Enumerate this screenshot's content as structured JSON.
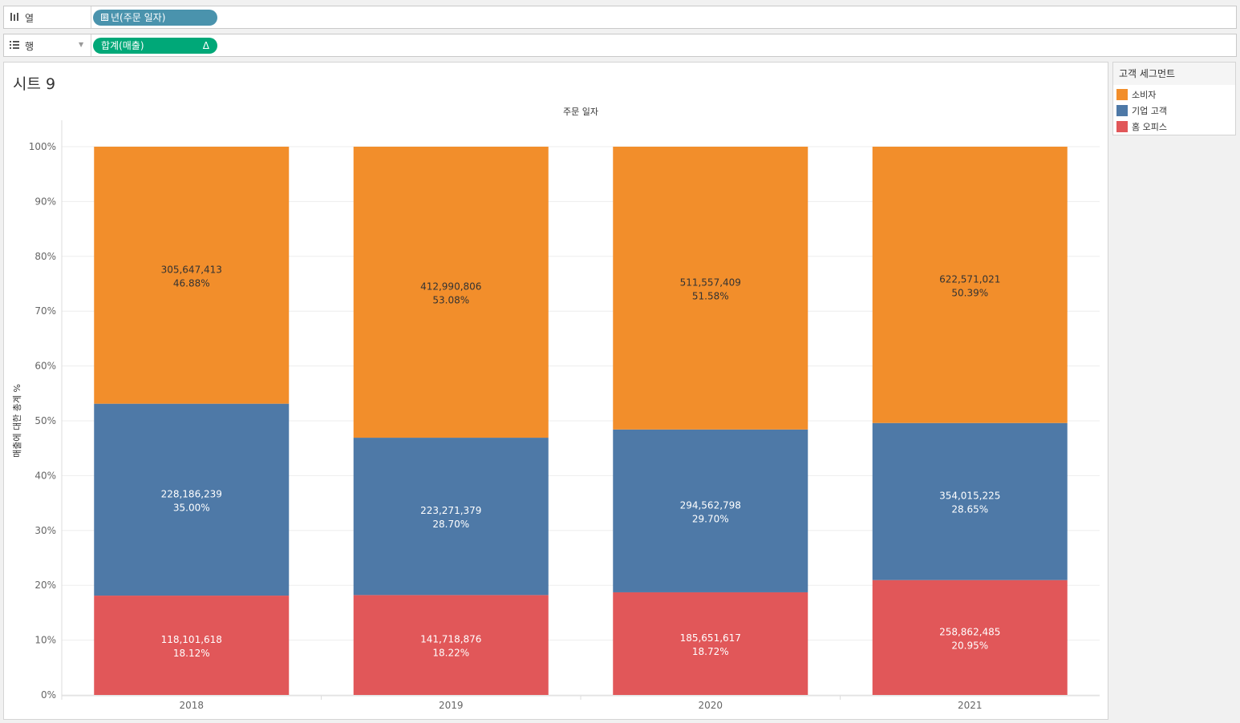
{
  "shelves": {
    "columns": {
      "label": "열",
      "pill": "년(주문 일자)",
      "pill_prefix": "⊞",
      "pill_color": "#4a93ad"
    },
    "rows": {
      "label": "행",
      "pill": "합계(매출)",
      "pill_suffix": "Δ",
      "pill_color": "#00a878"
    }
  },
  "sheet": {
    "title": "시트 9"
  },
  "legend": {
    "title": "고객 세그먼트",
    "items": [
      {
        "label": "소비자",
        "color": "#f28e2b"
      },
      {
        "label": "기업 고객",
        "color": "#4e79a7"
      },
      {
        "label": "홈 오피스",
        "color": "#e15759"
      }
    ]
  },
  "chart_data": {
    "type": "bar",
    "stacked": true,
    "normalized_percent": true,
    "title": "주문 일자",
    "xlabel": "",
    "ylabel": "매출에 대한 총계 %",
    "ylim": [
      0,
      100
    ],
    "yticks": [
      "0%",
      "10%",
      "20%",
      "30%",
      "40%",
      "50%",
      "60%",
      "70%",
      "80%",
      "90%",
      "100%"
    ],
    "categories": [
      "2018",
      "2019",
      "2020",
      "2021"
    ],
    "series": [
      {
        "name": "홈 오피스",
        "color": "#e15759",
        "values": [
          18.12,
          18.22,
          18.72,
          20.95
        ],
        "amounts": [
          "118,101,618",
          "141,718,876",
          "185,651,617",
          "258,862,485"
        ],
        "percent_labels": [
          "18.12%",
          "18.22%",
          "18.72%",
          "20.95%"
        ]
      },
      {
        "name": "기업 고객",
        "color": "#4e79a7",
        "values": [
          35.0,
          28.7,
          29.7,
          28.65
        ],
        "amounts": [
          "228,186,239",
          "223,271,379",
          "294,562,798",
          "354,015,225"
        ],
        "percent_labels": [
          "35.00%",
          "28.70%",
          "29.70%",
          "28.65%"
        ]
      },
      {
        "name": "소비자",
        "color": "#f28e2b",
        "values": [
          46.88,
          53.08,
          51.58,
          50.39
        ],
        "amounts": [
          "305,647,413",
          "412,990,806",
          "511,557,409",
          "622,571,021"
        ],
        "percent_labels": [
          "46.88%",
          "53.08%",
          "51.58%",
          "50.39%"
        ]
      }
    ],
    "grid": true,
    "legend_position": "right"
  }
}
